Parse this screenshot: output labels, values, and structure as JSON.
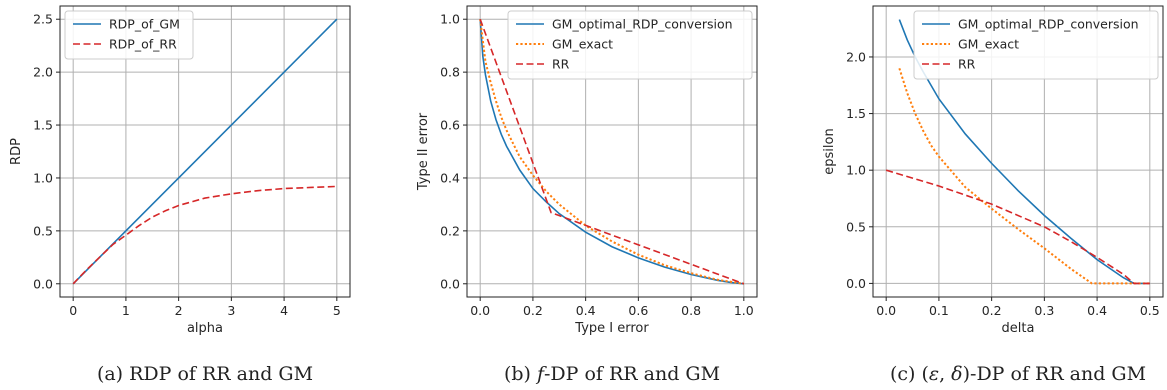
{
  "chart_data": [
    {
      "type": "line",
      "caption": "(a) RDP of RR and GM",
      "xlabel": "alpha",
      "ylabel": "RDP",
      "xlim": [
        -0.25,
        5.25
      ],
      "ylim": [
        -0.125,
        2.625
      ],
      "xticks": [
        "0",
        "1",
        "2",
        "3",
        "4",
        "5"
      ],
      "yticks": [
        "0.0",
        "0.5",
        "1.0",
        "1.5",
        "2.0",
        "2.5"
      ],
      "grid": true,
      "legend_position": "top-left",
      "series": [
        {
          "name": "RDP_of_GM",
          "color": "#1f77b4",
          "style": "solid",
          "x": [
            0,
            5
          ],
          "y": [
            0,
            2.5
          ]
        },
        {
          "name": "RDP_of_RR",
          "color": "#d62728",
          "style": "dashed",
          "x": [
            0,
            0.25,
            0.5,
            0.75,
            1,
            1.25,
            1.5,
            1.75,
            2,
            2.5,
            3,
            3.5,
            4,
            4.5,
            5
          ],
          "y": [
            0,
            0.13,
            0.25,
            0.37,
            0.46,
            0.55,
            0.63,
            0.69,
            0.74,
            0.81,
            0.85,
            0.88,
            0.9,
            0.91,
            0.92
          ]
        }
      ]
    },
    {
      "type": "line",
      "caption": "(b) f-DP of RR and GM",
      "xlabel": "Type I error",
      "ylabel": "Type II error",
      "xlim": [
        -0.05,
        1.05
      ],
      "ylim": [
        -0.05,
        1.05
      ],
      "xticks": [
        "0.0",
        "0.2",
        "0.4",
        "0.6",
        "0.8",
        "1.0"
      ],
      "yticks": [
        "0.0",
        "0.2",
        "0.4",
        "0.6",
        "0.8",
        "1.0"
      ],
      "grid": true,
      "legend_position": "top-right",
      "series": [
        {
          "name": "GM_optimal_RDP_conversion",
          "color": "#1f77b4",
          "style": "solid",
          "x": [
            0,
            0.01,
            0.02,
            0.04,
            0.06,
            0.08,
            0.1,
            0.15,
            0.2,
            0.25,
            0.3,
            0.4,
            0.5,
            0.6,
            0.7,
            0.8,
            0.9,
            0.95,
            1.0
          ],
          "y": [
            1.0,
            0.86,
            0.79,
            0.69,
            0.62,
            0.565,
            0.52,
            0.43,
            0.36,
            0.31,
            0.265,
            0.195,
            0.14,
            0.098,
            0.063,
            0.035,
            0.013,
            0.005,
            0.0
          ]
        },
        {
          "name": "GM_exact",
          "color": "#ff7f0e",
          "style": "dotted",
          "x": [
            0,
            0.02,
            0.04,
            0.06,
            0.08,
            0.1,
            0.15,
            0.2,
            0.25,
            0.3,
            0.4,
            0.5,
            0.6,
            0.7,
            0.8,
            0.9,
            1.0
          ],
          "y": [
            1.0,
            0.84,
            0.76,
            0.69,
            0.63,
            0.58,
            0.48,
            0.41,
            0.35,
            0.3,
            0.22,
            0.16,
            0.11,
            0.07,
            0.04,
            0.015,
            0.0
          ]
        },
        {
          "name": "RR",
          "color": "#d62728",
          "style": "dashed",
          "x": [
            0,
            0.269,
            1.0
          ],
          "y": [
            1.0,
            0.269,
            0.0
          ]
        }
      ]
    },
    {
      "type": "line",
      "caption": "(c) (ε, δ)-DP of RR and GM",
      "xlabel": "delta",
      "ylabel": "epsilon",
      "xlim": [
        -0.025,
        0.525
      ],
      "ylim": [
        -0.12,
        2.45
      ],
      "xticks": [
        "0.0",
        "0.1",
        "0.2",
        "0.3",
        "0.4",
        "0.5"
      ],
      "yticks": [
        "0.0",
        "0.5",
        "1.0",
        "1.5",
        "2.0"
      ],
      "grid": true,
      "legend_position": "top-right",
      "series": [
        {
          "name": "GM_optimal_RDP_conversion",
          "color": "#1f77b4",
          "style": "solid",
          "x": [
            0.025,
            0.04,
            0.055,
            0.07,
            0.085,
            0.1,
            0.15,
            0.2,
            0.25,
            0.3,
            0.35,
            0.4,
            0.45,
            0.47,
            0.5
          ],
          "y": [
            2.33,
            2.15,
            2.0,
            1.87,
            1.75,
            1.63,
            1.32,
            1.06,
            0.82,
            0.6,
            0.4,
            0.21,
            0.05,
            0.0,
            0.0
          ]
        },
        {
          "name": "GM_exact",
          "color": "#ff7f0e",
          "style": "dotted",
          "x": [
            0.025,
            0.04,
            0.055,
            0.07,
            0.085,
            0.1,
            0.15,
            0.2,
            0.25,
            0.3,
            0.35,
            0.39,
            0.45,
            0.5
          ],
          "y": [
            1.9,
            1.68,
            1.5,
            1.35,
            1.22,
            1.12,
            0.85,
            0.66,
            0.48,
            0.31,
            0.13,
            0.0,
            0.0,
            0.0
          ]
        },
        {
          "name": "RR",
          "color": "#d62728",
          "style": "dashed",
          "x": [
            0.0,
            0.1,
            0.2,
            0.3,
            0.35,
            0.4,
            0.45,
            0.47,
            0.5
          ],
          "y": [
            1.0,
            0.86,
            0.7,
            0.5,
            0.37,
            0.23,
            0.08,
            0.0,
            0.0
          ]
        }
      ]
    }
  ]
}
